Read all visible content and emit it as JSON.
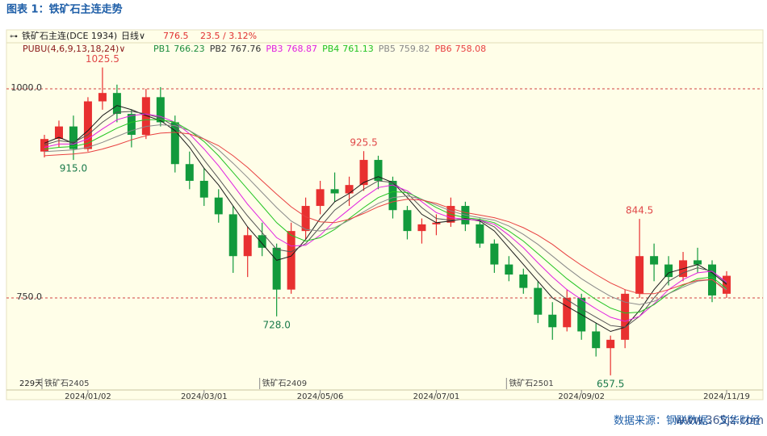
{
  "chart_data": {
    "type": "candlestick",
    "title": "图表 1：铁矿石主连走势",
    "toolbar": {
      "symbol": "铁矿石主连(DCE 1934)",
      "period": "日线∨",
      "change": "23.5 / 3.12%"
    },
    "indicator": "PUBU(4,6,9,13,18,24)∨",
    "bar_count": "229天",
    "source": "数据来源：钢联数据、文华财经",
    "watermark": "www.365jz.com",
    "up_color": "#e83030",
    "down_color": "#129a3c",
    "ylim": [
      640,
      1055
    ],
    "yticks": [
      {
        "value": 750,
        "label": "750.0"
      },
      {
        "value": 1000,
        "label": "1000.0"
      }
    ],
    "categories": [
      null,
      null,
      null,
      "2024/01/02",
      null,
      null,
      null,
      null,
      null,
      null,
      null,
      "2024/03/01",
      null,
      null,
      null,
      null,
      null,
      null,
      null,
      "2024/05/06",
      null,
      null,
      null,
      null,
      null,
      null,
      null,
      "2024/07/01",
      null,
      null,
      null,
      null,
      null,
      null,
      null,
      null,
      null,
      "2024/09/02",
      null,
      null,
      null,
      null,
      null,
      null,
      null,
      null,
      null,
      "2024/11/19"
    ],
    "contracts": [
      "铁矿石2405",
      null,
      null,
      null,
      null,
      null,
      null,
      null,
      null,
      null,
      null,
      null,
      null,
      null,
      null,
      "铁矿石2409",
      null,
      null,
      null,
      null,
      null,
      null,
      null,
      null,
      null,
      null,
      null,
      null,
      null,
      null,
      null,
      null,
      "铁矿石2501",
      null,
      null,
      null,
      null,
      null,
      null,
      null,
      null,
      null,
      null,
      null,
      null,
      null,
      null,
      null
    ],
    "open": [
      925,
      940,
      955,
      928,
      985,
      995,
      970,
      945,
      990,
      960,
      910,
      890,
      870,
      850,
      800,
      825,
      810,
      760,
      830,
      860,
      880,
      875,
      885,
      915,
      890,
      855,
      830,
      838,
      840,
      860,
      838,
      815,
      790,
      778,
      762,
      730,
      715,
      750,
      710,
      690,
      700,
      755,
      800,
      790,
      775,
      795,
      790,
      755
    ],
    "high": [
      945,
      962,
      968,
      990,
      1025.5,
      1005,
      975,
      1000,
      1002,
      968,
      925,
      905,
      880,
      860,
      835,
      840,
      815,
      840,
      870,
      890,
      900,
      895,
      925.5,
      920,
      895,
      860,
      845,
      850,
      870,
      865,
      845,
      820,
      800,
      785,
      770,
      745,
      760,
      755,
      720,
      705,
      760,
      844.5,
      815,
      800,
      805,
      810,
      795,
      782
    ],
    "low": [
      918,
      930,
      915,
      925,
      975,
      960,
      930,
      940,
      955,
      900,
      880,
      860,
      840,
      780,
      775,
      800,
      728,
      755,
      820,
      850,
      865,
      860,
      878,
      880,
      845,
      820,
      815,
      825,
      835,
      830,
      810,
      780,
      770,
      755,
      720,
      700,
      710,
      700,
      680,
      657.5,
      690,
      750,
      770,
      765,
      770,
      780,
      745,
      750
    ],
    "close": [
      940,
      955,
      928,
      985,
      995,
      970,
      945,
      990,
      960,
      910,
      890,
      870,
      850,
      800,
      825,
      810,
      760,
      830,
      860,
      880,
      875,
      885,
      915,
      890,
      855,
      830,
      838,
      840,
      860,
      838,
      815,
      790,
      778,
      762,
      730,
      715,
      750,
      710,
      690,
      700,
      755,
      800,
      790,
      775,
      795,
      790,
      753,
      776.5
    ],
    "annotations": [
      {
        "value": 1025.5,
        "label": "1025.5"
      },
      {
        "value": 915,
        "label": "915.0"
      },
      {
        "value": 925.5,
        "label": "925.5"
      },
      {
        "value": 728,
        "label": "728.0"
      },
      {
        "value": 844.5,
        "label": "844.5"
      },
      {
        "value": 657.5,
        "label": "657.5"
      }
    ],
    "series": [
      {
        "name": "PB1",
        "color": "#1e8e3e",
        "line_color": "#1a1a1a",
        "values": [
          935,
          942,
          935,
          950,
          968,
          980,
          975,
          968,
          962,
          950,
          930,
          905,
          885,
          860,
          835,
          815,
          795,
          800,
          820,
          845,
          865,
          875,
          888,
          895,
          888,
          870,
          850,
          840,
          842,
          845,
          842,
          830,
          810,
          790,
          770,
          750,
          740,
          730,
          720,
          710,
          715,
          735,
          760,
          780,
          785,
          790,
          780,
          766.23
        ]
      },
      {
        "name": "PB2",
        "color": "#333333",
        "line_color": "#555555",
        "values": [
          933,
          938,
          936,
          945,
          960,
          972,
          973,
          970,
          965,
          955,
          938,
          915,
          893,
          870,
          848,
          828,
          808,
          805,
          815,
          835,
          855,
          868,
          880,
          890,
          888,
          875,
          858,
          845,
          843,
          844,
          843,
          835,
          818,
          800,
          780,
          762,
          748,
          737,
          727,
          717,
          715,
          728,
          750,
          770,
          780,
          786,
          782,
          767.76
        ]
      },
      {
        "name": "PB3",
        "color": "#e020e0",
        "line_color": "#e020e0",
        "values": [
          930,
          934,
          934,
          940,
          952,
          963,
          968,
          970,
          967,
          960,
          946,
          928,
          908,
          885,
          862,
          842,
          822,
          812,
          813,
          825,
          842,
          856,
          870,
          882,
          885,
          878,
          865,
          852,
          846,
          844,
          843,
          838,
          825,
          810,
          792,
          775,
          760,
          748,
          737,
          727,
          722,
          728,
          743,
          760,
          772,
          780,
          782,
          768.87
        ]
      },
      {
        "name": "PB4",
        "color": "#22c422",
        "line_color": "#22c422",
        "values": [
          928,
          930,
          931,
          935,
          944,
          953,
          960,
          963,
          963,
          960,
          950,
          937,
          920,
          900,
          880,
          860,
          840,
          825,
          818,
          822,
          832,
          845,
          858,
          870,
          877,
          876,
          868,
          858,
          850,
          846,
          844,
          840,
          830,
          818,
          803,
          788,
          773,
          760,
          748,
          738,
          732,
          733,
          742,
          755,
          765,
          773,
          775,
          761.13
        ]
      },
      {
        "name": "PB5",
        "color": "#888888",
        "line_color": "#888888",
        "values": [
          925,
          926,
          927,
          930,
          936,
          943,
          950,
          955,
          957,
          956,
          950,
          940,
          927,
          911,
          894,
          876,
          858,
          842,
          832,
          830,
          834,
          843,
          853,
          863,
          870,
          872,
          868,
          861,
          854,
          849,
          846,
          843,
          836,
          826,
          814,
          800,
          786,
          773,
          762,
          752,
          745,
          742,
          746,
          755,
          763,
          770,
          772,
          759.82
        ]
      },
      {
        "name": "PB6",
        "color": "#e84040",
        "line_color": "#e84040",
        "values": [
          920,
          921,
          922,
          924,
          928,
          933,
          939,
          944,
          947,
          948,
          946,
          940,
          932,
          920,
          906,
          890,
          874,
          859,
          847,
          841,
          840,
          844,
          851,
          859,
          865,
          868,
          867,
          863,
          857,
          852,
          849,
          846,
          841,
          834,
          825,
          814,
          801,
          789,
          778,
          768,
          760,
          755,
          755,
          760,
          766,
          771,
          772,
          758.08
        ]
      }
    ]
  }
}
